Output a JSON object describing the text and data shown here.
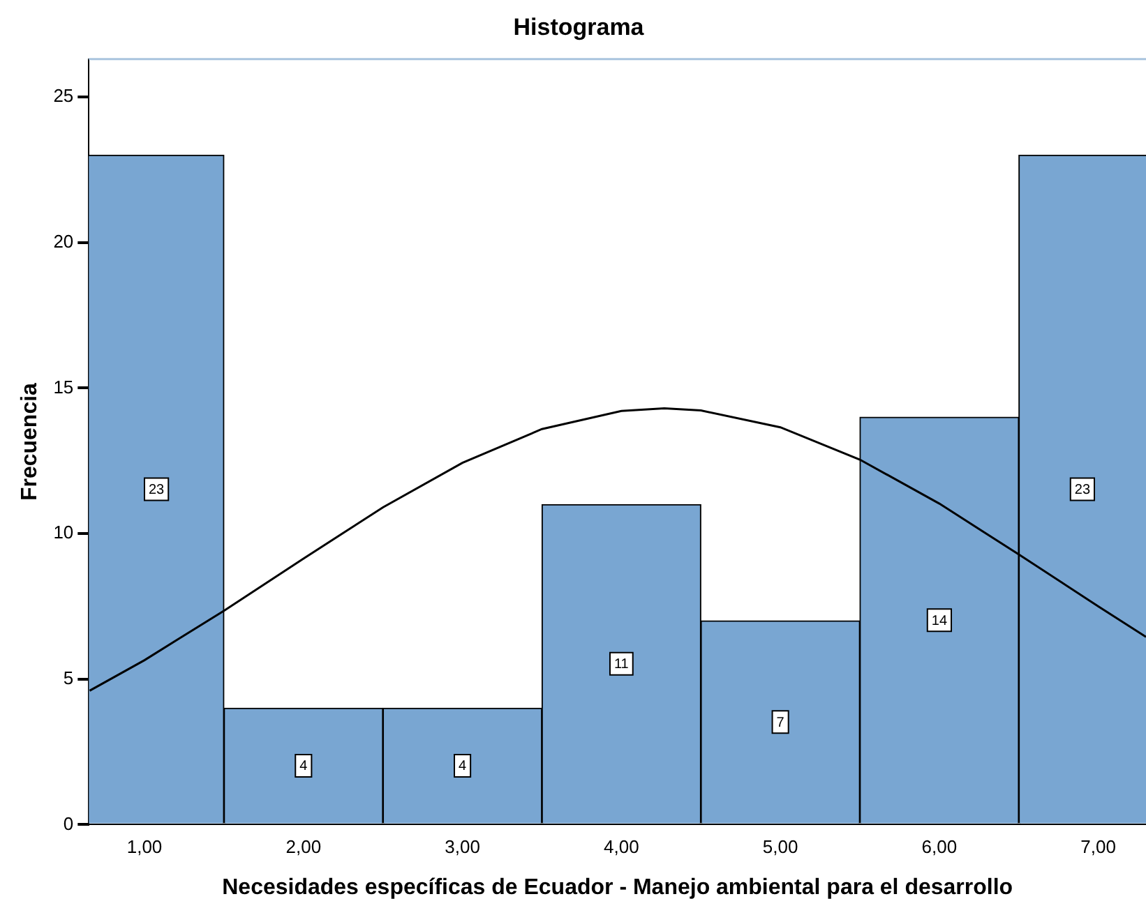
{
  "chart_data": {
    "type": "histogram",
    "title": "Histograma",
    "xlabel": "Necesidades específicas de Ecuador - Manejo ambiental para el desarrollo",
    "ylabel": "Frecuencia",
    "bins": [
      0.5,
      1.5,
      2.5,
      3.5,
      4.5,
      5.5,
      6.5,
      7.5
    ],
    "values": [
      23,
      4,
      4,
      11,
      7,
      14,
      23
    ],
    "color": "#79a6d2",
    "value_labels": [
      "23",
      "4",
      "4",
      "11",
      "7",
      "14",
      "23"
    ],
    "grid": false,
    "xlim": [
      0.65,
      7.3
    ],
    "xticks": [
      {
        "value": 1,
        "label": "1,00"
      },
      {
        "value": 2,
        "label": "2,00"
      },
      {
        "value": 3,
        "label": "3,00"
      },
      {
        "value": 4,
        "label": "4,00"
      },
      {
        "value": 5,
        "label": "5,00"
      },
      {
        "value": 6,
        "label": "6,00"
      },
      {
        "value": 7,
        "label": "7,00"
      }
    ],
    "ylim": [
      0,
      26.3
    ],
    "yticks": [
      0,
      5,
      10,
      15,
      20,
      25
    ],
    "series": [
      {
        "type": "line",
        "color": "#000000",
        "marker": "none",
        "x": [
          0.655,
          1,
          1.5,
          2,
          2.5,
          3,
          3.5,
          4,
          4.27,
          4.5,
          5,
          5.5,
          6,
          6.5,
          7,
          7.3
        ],
        "values": [
          4.6,
          5.65,
          7.35,
          9.14,
          10.9,
          12.43,
          13.59,
          14.21,
          14.3,
          14.23,
          13.65,
          12.54,
          11.03,
          9.28,
          7.5,
          6.45
        ]
      }
    ]
  }
}
